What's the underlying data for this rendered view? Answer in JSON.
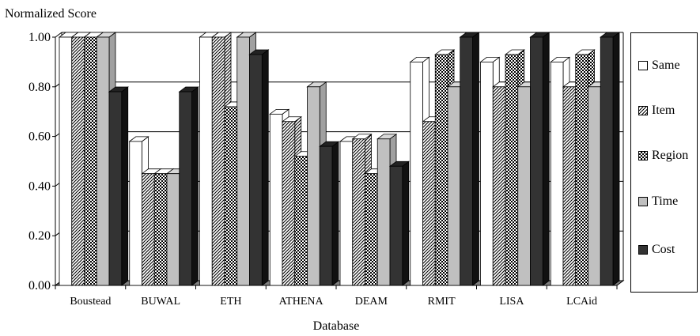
{
  "chart_data": {
    "type": "bar",
    "ylabel": "Normalized Score",
    "xlabel": "Database",
    "ylim": [
      0,
      1.0
    ],
    "yticks": [
      "0.00",
      "0.20",
      "0.40",
      "0.60",
      "0.80",
      "1.00"
    ],
    "grid": true,
    "legend_position": "right",
    "categories": [
      "Boustead",
      "BUWAL",
      "ETH",
      "ATHENA",
      "DEAM",
      "RMIT",
      "LISA",
      "LCAid"
    ],
    "series": [
      {
        "name": "Same",
        "pattern": "white",
        "values": [
          1.0,
          0.58,
          1.0,
          0.69,
          0.58,
          0.9,
          0.9,
          0.9
        ]
      },
      {
        "name": "Item",
        "pattern": "hatch",
        "values": [
          1.0,
          0.45,
          1.0,
          0.66,
          0.59,
          0.66,
          0.8,
          0.8
        ]
      },
      {
        "name": "Region",
        "pattern": "checker",
        "values": [
          1.0,
          0.45,
          0.72,
          0.52,
          0.45,
          0.93,
          0.93,
          0.93
        ]
      },
      {
        "name": "Time",
        "pattern": "gray",
        "values": [
          1.0,
          0.45,
          1.0,
          0.8,
          0.59,
          0.8,
          0.8,
          0.8
        ]
      },
      {
        "name": "Cost",
        "pattern": "dark",
        "values": [
          0.78,
          0.78,
          0.93,
          0.56,
          0.48,
          1.0,
          1.0,
          1.0
        ]
      }
    ],
    "colors": {
      "white": "#ffffff",
      "gray": "#c0c0c0",
      "dark": "#333333",
      "floor": "#808080"
    }
  }
}
